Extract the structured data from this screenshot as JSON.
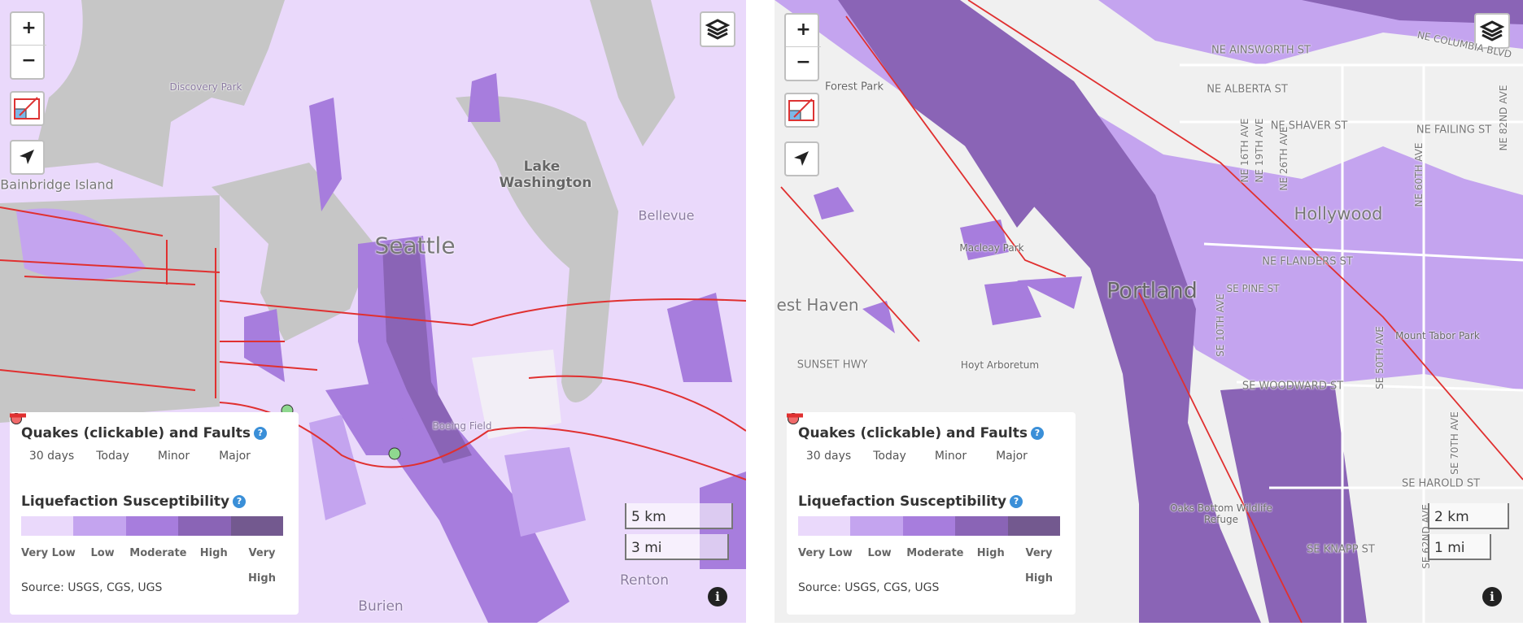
{
  "maps": [
    {
      "labels": [
        "Discovery Park",
        "Bainbridge Island",
        "Lake Washington",
        "Seattle",
        "Bellevue",
        "Boeing Field",
        "Renton",
        "Burien"
      ],
      "scale": {
        "km": "5 km",
        "mi": "3 mi"
      }
    },
    {
      "labels": [
        "NE COLUMBIA BLVD",
        "Forest Park",
        "NE AINSWORTH ST",
        "NE ALBERTA ST",
        "NE SHAVER ST",
        "NE FAILING ST",
        "NE 16TH AVE",
        "NE 19TH AVE",
        "NE 26TH AVE",
        "NE 60TH AVE",
        "NE 82ND AVE",
        "Hollywood",
        "Macleay Park",
        "NE FLANDERS ST",
        "Portland",
        "SE PINE ST",
        "SE 10TH AVE",
        "est Haven",
        "Mount Tabor Park",
        "SE 50TH AVE",
        "SUNSET HWY",
        "Hoyt Arboretum",
        "SE WOODWARD ST",
        "SE 70TH AVE",
        "SE HAROLD ST",
        "Oaks Bottom Wildlife Refuge",
        "SE KNAPP ST",
        "SE 62ND AVE"
      ],
      "scale": {
        "km": "2 km",
        "mi": "1 mi"
      }
    }
  ],
  "controls": {
    "zoom_in": "+",
    "zoom_out": "−",
    "info": "i"
  },
  "legend": {
    "title": "Quakes (clickable) and Faults",
    "help": "?",
    "items": [
      "30 days",
      "Today",
      "Minor",
      "Major"
    ],
    "liquefaction_title": "Liquefaction Susceptibility",
    "classes": [
      "Very Low",
      "Low",
      "Moderate",
      "High",
      "Very High"
    ],
    "colors": [
      "#ead9fb",
      "#c4a4ef",
      "#a77ddd",
      "#8a64b6",
      "#73598f"
    ],
    "source": "Source: USGS, CGS, UGS"
  }
}
